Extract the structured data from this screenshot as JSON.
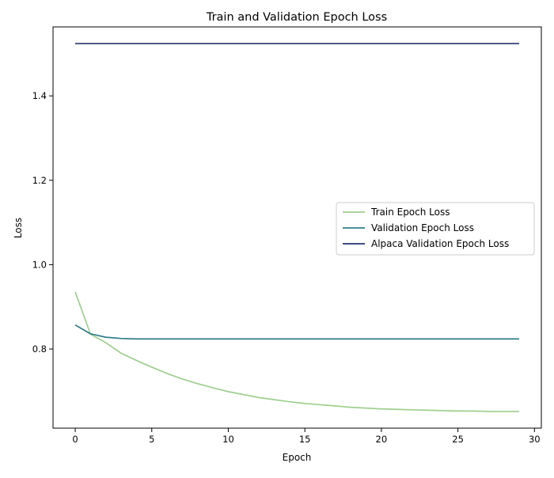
{
  "chart_data": {
    "type": "line",
    "title": "Train and Validation Epoch Loss",
    "xlabel": "Epoch",
    "ylabel": "Loss",
    "xlim": [
      -1.45,
      30.45
    ],
    "ylim": [
      0.6125,
      1.5635
    ],
    "xticks": [
      0,
      5,
      10,
      15,
      20,
      25,
      30
    ],
    "yticks": [
      0.8,
      1.0,
      1.2,
      1.4
    ],
    "grid": false,
    "legend_position": "center-right",
    "x": [
      0,
      1,
      2,
      3,
      4,
      5,
      6,
      7,
      8,
      9,
      10,
      11,
      12,
      13,
      14,
      15,
      16,
      17,
      18,
      19,
      20,
      21,
      22,
      23,
      24,
      25,
      26,
      27,
      28,
      29
    ],
    "series": [
      {
        "name": "Train Epoch Loss",
        "color": "#9ecf8f",
        "values": [
          0.935,
          0.835,
          0.815,
          0.79,
          0.773,
          0.757,
          0.742,
          0.729,
          0.718,
          0.708,
          0.699,
          0.692,
          0.685,
          0.68,
          0.675,
          0.671,
          0.668,
          0.665,
          0.662,
          0.66,
          0.658,
          0.657,
          0.656,
          0.655,
          0.654,
          0.653,
          0.653,
          0.652,
          0.652,
          0.652
        ]
      },
      {
        "name": "Validation Epoch Loss",
        "color": "#2f7f8a",
        "values": [
          0.857,
          0.836,
          0.828,
          0.825,
          0.824,
          0.824,
          0.824,
          0.824,
          0.824,
          0.824,
          0.824,
          0.824,
          0.824,
          0.824,
          0.824,
          0.824,
          0.824,
          0.824,
          0.824,
          0.824,
          0.824,
          0.824,
          0.824,
          0.824,
          0.824,
          0.824,
          0.824,
          0.824,
          0.824,
          0.824
        ]
      },
      {
        "name": "Alpaca Validation Epoch Loss",
        "color": "#263473",
        "values": [
          1.524,
          1.524,
          1.524,
          1.524,
          1.524,
          1.524,
          1.524,
          1.524,
          1.524,
          1.524,
          1.524,
          1.524,
          1.524,
          1.524,
          1.524,
          1.524,
          1.524,
          1.524,
          1.524,
          1.524,
          1.524,
          1.524,
          1.524,
          1.524,
          1.524,
          1.524,
          1.524,
          1.524,
          1.524,
          1.524
        ]
      }
    ]
  }
}
